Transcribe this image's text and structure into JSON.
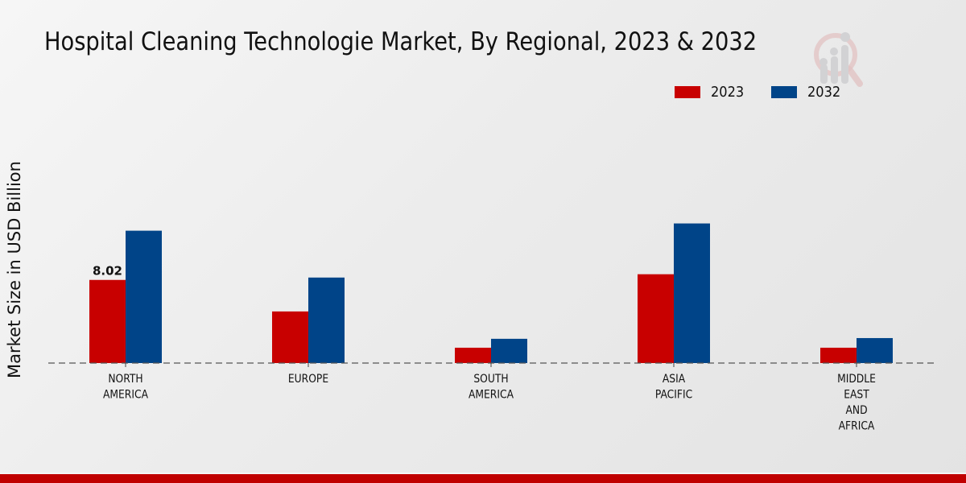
{
  "chart_data": {
    "type": "bar",
    "title": "Hospital Cleaning Technologie Market, By Regional, 2023 & 2032",
    "xlabel": "",
    "ylabel": "Market Size in USD Billion",
    "ylim": [
      0,
      16
    ],
    "grid": false,
    "legend_position": "top-right",
    "categories": [
      [
        "NORTH",
        "AMERICA"
      ],
      [
        "EUROPE"
      ],
      [
        "SOUTH",
        "AMERICA"
      ],
      [
        "ASIA",
        "PACIFIC"
      ],
      [
        "MIDDLE",
        "EAST",
        "AND",
        "AFRICA"
      ]
    ],
    "series": [
      {
        "name": "2023",
        "color": "#c80000",
        "values": [
          8.02,
          4.98,
          1.48,
          8.57,
          1.48
        ]
      },
      {
        "name": "2032",
        "color": "#004488",
        "values": [
          12.77,
          8.25,
          2.34,
          13.47,
          2.41
        ]
      }
    ],
    "annotations": [
      {
        "series": 0,
        "category": 0,
        "text": "8.02"
      }
    ]
  },
  "footer": {
    "accent_color": "#c00000"
  }
}
